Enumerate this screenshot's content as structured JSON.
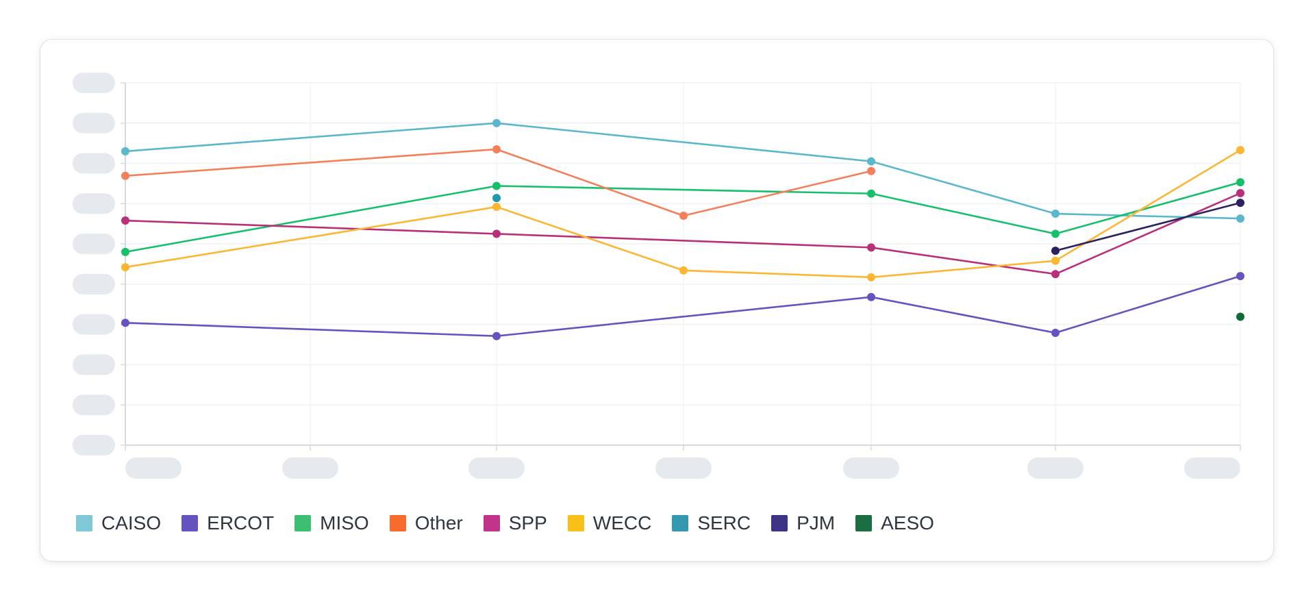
{
  "chart_data": {
    "type": "line",
    "title": "",
    "xlabel": "",
    "ylabel": "",
    "x_ticks": [
      "",
      "",
      "",
      "",
      "",
      "",
      ""
    ],
    "y_ticks": [
      "",
      "",
      "",
      "",
      "",
      "",
      "",
      "",
      "",
      ""
    ],
    "ylim": [
      0,
      9
    ],
    "grid": true,
    "legend_position": "bottom-left",
    "series": [
      {
        "name": "CAISO",
        "color": "#5bb8cc",
        "legend_color": "#7ec8d8",
        "values": [
          7.3,
          null,
          8.0,
          null,
          7.05,
          5.75,
          5.63
        ]
      },
      {
        "name": "ERCOT",
        "color": "#6554c0",
        "legend_color": "#6554c0",
        "values": [
          3.04,
          null,
          2.71,
          null,
          3.68,
          2.79,
          4.2
        ]
      },
      {
        "name": "MISO",
        "color": "#16c06b",
        "legend_color": "#3dbf71",
        "values": [
          4.8,
          null,
          6.44,
          null,
          6.25,
          5.25,
          6.53
        ]
      },
      {
        "name": "Other",
        "color": "#f57f5b",
        "legend_color": "#f96b2d",
        "values": [
          6.69,
          null,
          7.35,
          5.7,
          6.81,
          null,
          null
        ]
      },
      {
        "name": "SPP",
        "color": "#b8307a",
        "legend_color": "#c0358a",
        "values": [
          5.58,
          null,
          5.25,
          null,
          4.91,
          4.25,
          6.26
        ]
      },
      {
        "name": "WECC",
        "color": "#fbb731",
        "legend_color": "#f8c018",
        "values": [
          4.42,
          null,
          5.92,
          4.34,
          4.17,
          4.58,
          7.33
        ]
      },
      {
        "name": "SERC",
        "color": "#1f9aa8",
        "legend_color": "#3399b0",
        "values": [
          null,
          null,
          6.14,
          null,
          null,
          null,
          null
        ]
      },
      {
        "name": "PJM",
        "color": "#2a2160",
        "legend_color": "#3d3285",
        "values": [
          null,
          null,
          null,
          null,
          null,
          4.83,
          6.02
        ]
      },
      {
        "name": "AESO",
        "color": "#0e6b36",
        "legend_color": "#1b6e3f",
        "values": [
          null,
          null,
          null,
          null,
          null,
          null,
          3.19
        ]
      }
    ]
  }
}
